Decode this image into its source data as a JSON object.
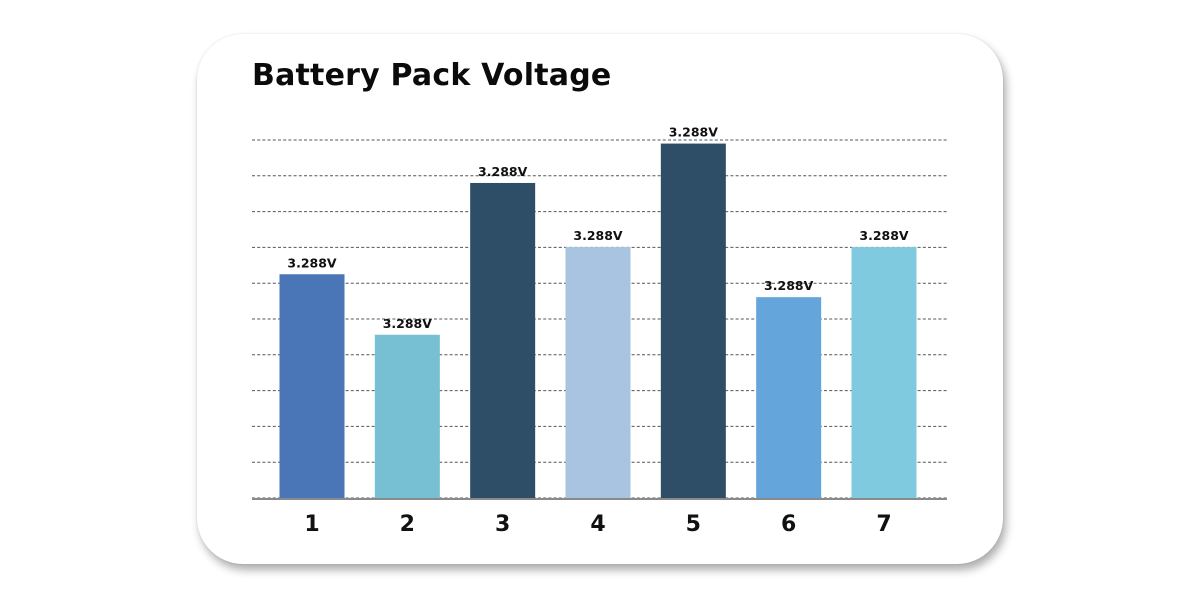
{
  "chart_data": {
    "type": "bar",
    "title": "Battery Pack Voltage",
    "xlabel": "",
    "ylabel": "",
    "categories": [
      "1",
      "2",
      "3",
      "4",
      "5",
      "6",
      "7"
    ],
    "values": [
      3.288,
      3.288,
      3.288,
      3.288,
      3.288,
      3.288,
      3.288
    ],
    "data_labels": [
      "3.288V",
      "3.288V",
      "3.288V",
      "3.288V",
      "3.288V",
      "3.288V",
      "3.288V"
    ],
    "relative_bar_levels": [
      0.625,
      0.456,
      0.88,
      0.701,
      0.99,
      0.561,
      0.701
    ],
    "colors": [
      "#4a76b8",
      "#77c0d4",
      "#2e4d66",
      "#a9c4e0",
      "#2e4d66",
      "#64a5db",
      "#80cadf"
    ],
    "grid": true,
    "legend": "none"
  }
}
